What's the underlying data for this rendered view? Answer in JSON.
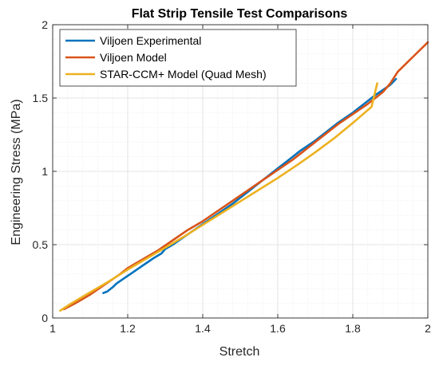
{
  "chart_data": {
    "type": "line",
    "title": "Flat Strip Tensile Test Comparisons",
    "xlabel": "Stretch",
    "ylabel": "Engineering Stress (MPa)",
    "xlim": [
      1,
      2
    ],
    "ylim": [
      0,
      2
    ],
    "x_ticks": [
      1,
      1.2,
      1.4,
      1.6,
      1.8,
      2
    ],
    "x_tick_labels": [
      "1",
      "1.2",
      "1.4",
      "1.6",
      "1.8",
      "2"
    ],
    "y_ticks": [
      0,
      0.5,
      1,
      1.5,
      2
    ],
    "y_tick_labels": [
      "0",
      "0.5",
      "1",
      "1.5",
      "2"
    ],
    "grid": true,
    "minor_grid": true,
    "legend_position": "top-left",
    "series": [
      {
        "name": "Viljoen Experimental",
        "color": "#0072BD",
        "x": [
          1.135,
          1.145,
          1.16,
          1.17,
          1.19,
          1.21,
          1.23,
          1.25,
          1.27,
          1.29,
          1.3,
          1.32,
          1.34,
          1.36,
          1.38,
          1.4,
          1.42,
          1.44,
          1.46,
          1.48,
          1.5,
          1.52,
          1.54,
          1.56,
          1.58,
          1.6,
          1.62,
          1.64,
          1.66,
          1.68,
          1.7,
          1.72,
          1.74,
          1.76,
          1.78,
          1.8,
          1.82,
          1.84,
          1.86,
          1.88,
          1.9,
          1.915
        ],
        "y": [
          0.17,
          0.18,
          0.21,
          0.235,
          0.27,
          0.305,
          0.34,
          0.375,
          0.41,
          0.44,
          0.47,
          0.5,
          0.535,
          0.57,
          0.605,
          0.64,
          0.675,
          0.71,
          0.745,
          0.78,
          0.82,
          0.86,
          0.9,
          0.94,
          0.98,
          1.02,
          1.06,
          1.1,
          1.14,
          1.175,
          1.21,
          1.25,
          1.29,
          1.33,
          1.365,
          1.4,
          1.44,
          1.48,
          1.52,
          1.555,
          1.59,
          1.63
        ]
      },
      {
        "name": "Viljoen Model",
        "color": "#D95319",
        "x": [
          1.03,
          1.06,
          1.1,
          1.14,
          1.18,
          1.2,
          1.24,
          1.28,
          1.32,
          1.36,
          1.4,
          1.44,
          1.48,
          1.52,
          1.56,
          1.6,
          1.64,
          1.68,
          1.72,
          1.76,
          1.8,
          1.84,
          1.88,
          1.9,
          1.92,
          1.96,
          2.0
        ],
        "y": [
          0.06,
          0.1,
          0.16,
          0.23,
          0.3,
          0.34,
          0.4,
          0.46,
          0.53,
          0.6,
          0.66,
          0.73,
          0.8,
          0.87,
          0.94,
          1.01,
          1.08,
          1.16,
          1.24,
          1.32,
          1.39,
          1.46,
          1.54,
          1.6,
          1.68,
          1.78,
          1.88
        ]
      },
      {
        "name": "STAR-CCM+ Model (Quad Mesh)",
        "color": "#EDB120",
        "x": [
          1.02,
          1.05,
          1.1,
          1.15,
          1.2,
          1.25,
          1.3,
          1.35,
          1.4,
          1.45,
          1.5,
          1.55,
          1.6,
          1.65,
          1.7,
          1.75,
          1.8,
          1.85,
          1.865
        ],
        "y": [
          0.05,
          0.1,
          0.175,
          0.25,
          0.33,
          0.405,
          0.48,
          0.555,
          0.635,
          0.715,
          0.795,
          0.875,
          0.955,
          1.04,
          1.13,
          1.225,
          1.33,
          1.44,
          1.6
        ]
      }
    ]
  }
}
